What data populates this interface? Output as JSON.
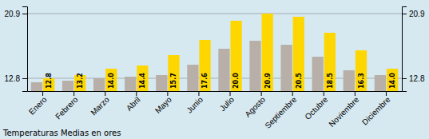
{
  "chart_data": {
    "type": "bar",
    "title": "Temperaturas Medias en ores",
    "categories": [
      "Enero",
      "Febrero",
      "Marzo",
      "Abril",
      "Mayo",
      "Junio",
      "Julio",
      "Agosto",
      "Septiembre",
      "Octubre",
      "Noviembre",
      "Diciembre"
    ],
    "series": [
      {
        "color": "#B8B0A8",
        "values": [
          12.3,
          12.5,
          12.8,
          13.0,
          13.2,
          14.5,
          16.5,
          17.5,
          17.0,
          15.5,
          13.8,
          13.2
        ]
      },
      {
        "color": "#FFD700",
        "values": [
          12.8,
          13.2,
          14.0,
          14.4,
          15.7,
          17.6,
          20.0,
          20.9,
          20.5,
          18.5,
          16.3,
          14.0
        ],
        "data_labels": true,
        "value_labels": [
          "12.8",
          "13.2",
          "14.0",
          "14.4",
          "15.7",
          "17.6",
          "20.0",
          "20.9",
          "20.5",
          "18.5",
          "16.3",
          "14.0"
        ]
      }
    ],
    "ylim": [
      11.2,
      21.8
    ],
    "yticks": [
      12.8,
      20.9
    ],
    "y2lim": [
      11.2,
      21.8
    ],
    "y2ticks": [
      12.8,
      20.9
    ],
    "grid": true
  }
}
